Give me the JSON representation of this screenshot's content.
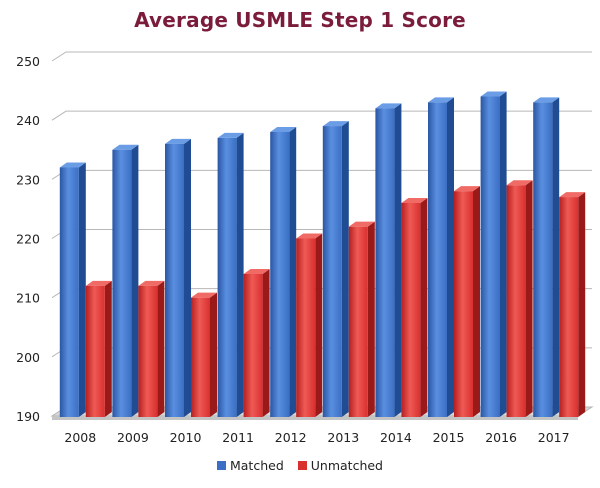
{
  "chart_data": {
    "type": "bar",
    "title": "Average USMLE Step 1 Score",
    "categories": [
      "2008",
      "2009",
      "2010",
      "2011",
      "2012",
      "2013",
      "2014",
      "2015",
      "2016",
      "2017"
    ],
    "series": [
      {
        "name": "Matched",
        "color": "#3a6fc4",
        "values": [
          232,
          235,
          236,
          237,
          238,
          239,
          242,
          243,
          244,
          243
        ]
      },
      {
        "name": "Unmatched",
        "color": "#d8302f",
        "values": [
          212,
          212,
          210,
          214,
          220,
          222,
          226,
          228,
          229,
          227
        ]
      }
    ],
    "yticks": [
      "190",
      "200",
      "210",
      "220",
      "230",
      "240",
      "250"
    ],
    "ylim": [
      190,
      250
    ],
    "xlabel": "",
    "ylabel": "",
    "grid": true,
    "legend": "bottom-center"
  }
}
